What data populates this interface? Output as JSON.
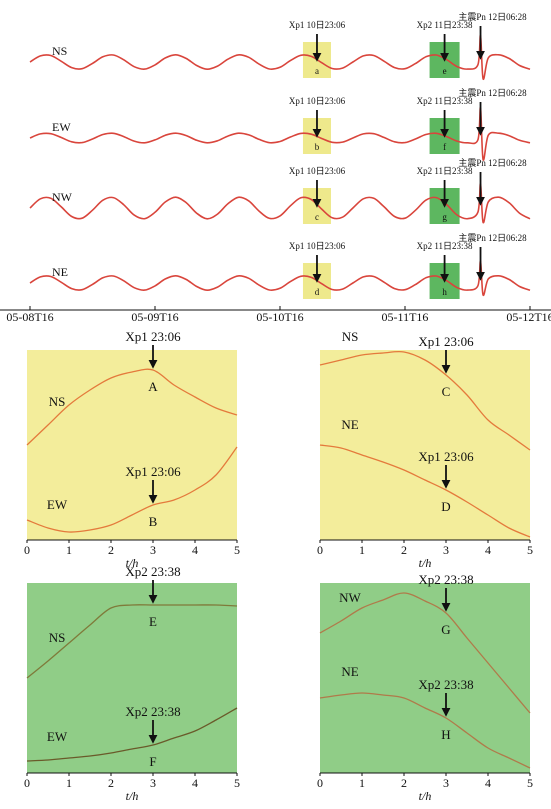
{
  "chart_data": [
    {
      "type": "trace",
      "x": [
        0,
        2,
        4,
        6,
        8,
        10,
        12,
        14,
        16,
        18,
        20,
        22,
        24,
        26,
        28,
        30,
        32,
        34,
        36,
        38,
        40,
        42,
        44,
        46,
        48,
        50,
        52,
        54,
        56,
        58,
        60,
        62,
        64,
        66,
        68,
        70,
        72,
        74,
        76,
        78,
        80,
        82,
        84,
        86,
        86.5,
        87,
        88,
        90,
        92,
        94,
        96
      ],
      "xlim": [
        0,
        96
      ],
      "xticks": [
        {
          "value": 0,
          "label": "05-08T16"
        },
        {
          "value": 24,
          "label": "05-09T16"
        },
        {
          "value": 48,
          "label": "05-10T16"
        },
        {
          "value": 72,
          "label": "05-11T16"
        },
        {
          "value": 96,
          "label": "05-12T16"
        }
      ],
      "events": [
        {
          "label": "Xp1 10日23:06",
          "x": 55.1,
          "color": "#eee98c"
        },
        {
          "label": "Xp2 11日23:38",
          "x": 79.6,
          "color": "#5db760"
        },
        {
          "label": "主震Pn 12日06:28",
          "x": 86.5
        }
      ],
      "series": [
        {
          "name": "NS",
          "color": "#d9453c",
          "boxes": [
            "a",
            "e"
          ],
          "values": [
            0,
            0.51,
            0.54,
            0.06,
            -0.47,
            -0.56,
            -0.12,
            0.43,
            0.58,
            0.18,
            -0.39,
            -0.59,
            -0.24,
            0.34,
            0.6,
            0.29,
            -0.29,
            -0.6,
            -0.34,
            0.23,
            0.59,
            0.39,
            -0.18,
            -0.58,
            -0.44,
            0.12,
            0.56,
            0.47,
            -0.06,
            -0.54,
            -0.51,
            0,
            0.51,
            0.54,
            0.06,
            -0.47,
            -0.56,
            -0.13,
            0.43,
            0.58,
            0.19,
            -0.38,
            -0.59,
            -0.23,
            2.2,
            -1.4,
            0.34,
            0.6,
            0.29,
            -0.29,
            -0.6
          ]
        },
        {
          "name": "EW",
          "color": "#d9453c",
          "boxes": [
            "b",
            "f"
          ],
          "values": [
            0,
            0.34,
            0.36,
            0.04,
            -0.32,
            -0.38,
            -0.08,
            0.29,
            0.39,
            0.12,
            -0.26,
            -0.4,
            -0.16,
            0.23,
            0.4,
            0.2,
            -0.19,
            -0.4,
            -0.23,
            0.16,
            0.4,
            0.26,
            -0.12,
            -0.39,
            -0.29,
            0.08,
            0.38,
            0.32,
            -0.04,
            -0.36,
            -0.34,
            0,
            0.34,
            0.36,
            0.04,
            -0.32,
            -0.38,
            -0.08,
            0.29,
            0.39,
            0.12,
            -0.26,
            -0.4,
            -0.16,
            2.5,
            -1.8,
            0.23,
            0.4,
            0.19,
            -0.19,
            -0.4
          ]
        },
        {
          "name": "NW",
          "color": "#d9453c",
          "boxes": [
            "c",
            "g"
          ],
          "values": [
            0,
            0.77,
            0.81,
            0.09,
            -0.71,
            -0.85,
            -0.18,
            0.65,
            0.87,
            0.27,
            -0.59,
            -0.89,
            -0.36,
            0.51,
            0.9,
            0.44,
            -0.43,
            -0.9,
            -0.51,
            0.35,
            0.89,
            0.59,
            -0.27,
            -0.87,
            -0.66,
            0.18,
            0.85,
            0.71,
            -0.09,
            -0.81,
            -0.77,
            0,
            0.77,
            0.81,
            0.09,
            -0.71,
            -0.85,
            -0.19,
            0.65,
            0.87,
            0.28,
            -0.58,
            -0.89,
            -0.35,
            2.0,
            -1.2,
            0.51,
            0.9,
            0.43,
            -0.43,
            -0.9
          ]
        },
        {
          "name": "NE",
          "color": "#d9453c",
          "boxes": [
            "d",
            "h"
          ],
          "values": [
            0,
            0.51,
            0.54,
            0.06,
            -0.47,
            -0.56,
            -0.12,
            0.43,
            0.58,
            0.18,
            -0.39,
            -0.59,
            -0.24,
            0.34,
            0.6,
            0.29,
            -0.29,
            -0.6,
            -0.34,
            0.23,
            0.59,
            0.39,
            -0.18,
            -0.58,
            -0.44,
            0.12,
            0.56,
            0.47,
            -0.06,
            -0.54,
            -0.51,
            0,
            0.51,
            0.54,
            0.06,
            -0.47,
            -0.56,
            -0.13,
            0.43,
            0.58,
            0.19,
            -0.38,
            -0.59,
            -0.23,
            1.8,
            -1.0,
            0.34,
            0.6,
            0.29,
            -0.29,
            -0.6
          ]
        }
      ]
    },
    {
      "type": "panel",
      "background": "#f3ed9b",
      "x": [
        0,
        0.5,
        1,
        1.5,
        2,
        2.5,
        3,
        3.5,
        4,
        4.5,
        5
      ],
      "xlim": [
        0,
        5
      ],
      "xticks": [
        0,
        1,
        2,
        3,
        4,
        5
      ],
      "xlabel": "t/h",
      "series": [
        {
          "name": "NS",
          "color": "#e47a3c",
          "values": [
            95,
            115,
            135,
            150,
            162,
            168,
            170,
            155,
            143,
            132,
            125
          ],
          "event": {
            "label": "Xp1 23:06",
            "x": 3,
            "letter": "A"
          }
        },
        {
          "name": "EW",
          "color": "#e47a3c",
          "values": [
            20,
            12,
            8,
            10,
            15,
            25,
            35,
            40,
            50,
            65,
            93
          ],
          "event": {
            "label": "Xp1 23:06",
            "x": 3,
            "letter": "B"
          }
        }
      ]
    },
    {
      "type": "panel",
      "background": "#f3ed9b",
      "x": [
        0,
        0.5,
        1,
        1.5,
        2,
        2.5,
        3,
        3.5,
        4,
        4.5,
        5
      ],
      "xlim": [
        0,
        5
      ],
      "xticks": [
        0,
        1,
        2,
        3,
        4,
        5
      ],
      "xlabel": "t/h",
      "series": [
        {
          "name": "NS",
          "color": "#e47a3c",
          "values": [
            175,
            180,
            185,
            187,
            188,
            180,
            165,
            145,
            120,
            105,
            90
          ],
          "event": {
            "label": "Xp1 23:06",
            "x": 3,
            "letter": "C"
          }
        },
        {
          "name": "NE",
          "color": "#e47a3c",
          "values": [
            95,
            92,
            85,
            78,
            70,
            60,
            50,
            38,
            25,
            12,
            3
          ],
          "event": {
            "label": "Xp1 23:06",
            "x": 3,
            "letter": "D"
          }
        }
      ]
    },
    {
      "type": "panel",
      "background": "#90cd87",
      "x": [
        0,
        0.5,
        1,
        1.5,
        2,
        2.5,
        3,
        3.5,
        4,
        4.5,
        5
      ],
      "xlim": [
        0,
        5
      ],
      "xticks": [
        0,
        1,
        2,
        3,
        4,
        5
      ],
      "xlabel": "t/h",
      "series": [
        {
          "name": "NS",
          "color": "#7f7a3a",
          "values": [
            95,
            112,
            130,
            148,
            165,
            168,
            168,
            168,
            168,
            168,
            167
          ],
          "event": {
            "label": "Xp2 23:38",
            "x": 3,
            "letter": "E"
          }
        },
        {
          "name": "EW",
          "color": "#6a5a2a",
          "values": [
            12,
            13,
            15,
            17,
            20,
            24,
            28,
            35,
            42,
            53,
            65
          ],
          "event": {
            "label": "Xp2 23:38",
            "x": 3,
            "letter": "F"
          }
        }
      ]
    },
    {
      "type": "panel",
      "background": "#90cd87",
      "x": [
        0,
        0.5,
        1,
        1.5,
        2,
        2.5,
        3,
        3.5,
        4,
        4.5,
        5
      ],
      "xlim": [
        0,
        5
      ],
      "xticks": [
        0,
        1,
        2,
        3,
        4,
        5
      ],
      "xlabel": "t/h",
      "series": [
        {
          "name": "NW",
          "color": "#b07a4a",
          "values": [
            140,
            152,
            165,
            173,
            180,
            172,
            160,
            135,
            110,
            85,
            60
          ],
          "event": {
            "label": "Xp2 23:38",
            "x": 3,
            "letter": "G"
          }
        },
        {
          "name": "NE",
          "color": "#b07a4a",
          "values": [
            75,
            78,
            80,
            78,
            75,
            65,
            55,
            40,
            25,
            15,
            5
          ],
          "event": {
            "label": "Xp2 23:38",
            "x": 3,
            "letter": "H"
          }
        }
      ]
    }
  ]
}
